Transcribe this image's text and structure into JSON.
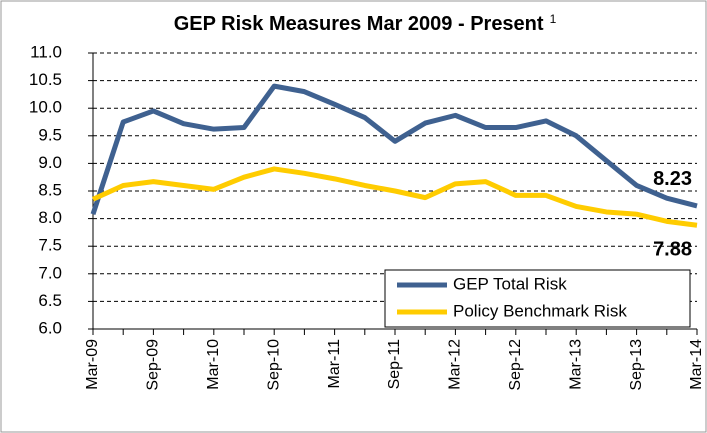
{
  "chart_data": {
    "type": "line",
    "title": "GEP Risk Measures Mar 2009 - Present",
    "title_note": "1",
    "categories": [
      "Mar-09",
      null,
      "Sep-09",
      null,
      "Mar-10",
      null,
      "Sep-10",
      null,
      "Mar-11",
      null,
      "Sep-11",
      null,
      "Mar-12",
      null,
      "Sep-12",
      null,
      "Mar-13",
      null,
      "Sep-13",
      null,
      "Mar-14"
    ],
    "series": [
      {
        "name": "GEP Total Risk",
        "color": "#3f6190",
        "values": [
          8.08,
          9.75,
          9.95,
          9.72,
          9.62,
          9.65,
          10.4,
          10.3,
          10.07,
          9.83,
          9.4,
          9.73,
          9.87,
          9.65,
          9.65,
          9.77,
          9.5,
          9.05,
          8.6,
          8.37,
          8.23
        ]
      },
      {
        "name": "Policy Benchmark Risk",
        "color": "#ffcc00",
        "values": [
          8.35,
          8.6,
          8.67,
          8.6,
          8.53,
          8.75,
          8.9,
          8.82,
          8.72,
          8.6,
          8.5,
          8.38,
          8.63,
          8.67,
          8.42,
          8.42,
          8.22,
          8.12,
          8.08,
          7.95,
          7.88
        ]
      }
    ],
    "ylim": [
      6,
      11
    ],
    "yticks": [
      {
        "value": 6,
        "label": "6.0"
      },
      6.5,
      {
        "value": 7,
        "label": "7.0"
      },
      7.5,
      {
        "value": 8,
        "label": "8.0"
      },
      8.5,
      {
        "value": 9,
        "label": "9.0"
      },
      9.5,
      {
        "value": 10,
        "label": "10.0"
      },
      10.5,
      {
        "value": 11,
        "label": "11.0"
      }
    ],
    "grid": true,
    "legend": "lower right"
  }
}
